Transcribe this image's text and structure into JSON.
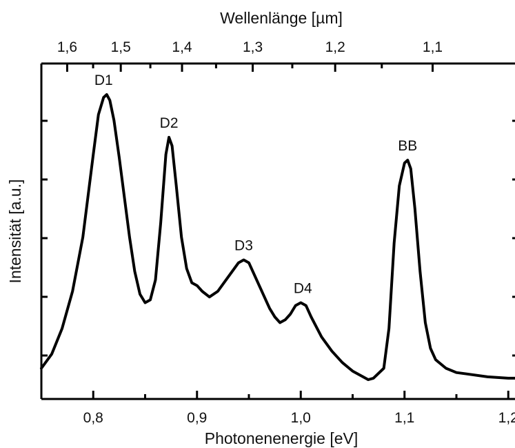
{
  "chart_data": {
    "type": "line",
    "title": "",
    "xlabel": "Photonenenergie [eV]",
    "ylabel": "Intensität [a.u.]",
    "x2label": "Wellenlänge [µm]",
    "xlim": [
      0.75,
      1.21
    ],
    "ylim": [
      0,
      1
    ],
    "x_ticks": [
      0.8,
      0.9,
      1.0,
      1.1,
      1.2
    ],
    "x_tick_labels": [
      "0,8",
      "0,9",
      "1,0",
      "1,1",
      "1,2"
    ],
    "x2_ticks": [
      1.6,
      1.5,
      1.4,
      1.3,
      1.2,
      1.1
    ],
    "x2_tick_labels": [
      "1,6",
      "1,5",
      "1,4",
      "1,3",
      "1,2",
      "1,1"
    ],
    "y_tick_labels_shown": false,
    "grid": false,
    "series": [
      {
        "x": [
          0.75,
          0.76,
          0.77,
          0.78,
          0.79,
          0.8,
          0.805,
          0.81,
          0.813,
          0.816,
          0.82,
          0.825,
          0.83,
          0.835,
          0.84,
          0.845,
          0.85,
          0.855,
          0.86,
          0.865,
          0.87,
          0.873,
          0.876,
          0.88,
          0.885,
          0.89,
          0.895,
          0.9,
          0.905,
          0.912,
          0.92,
          0.93,
          0.94,
          0.945,
          0.95,
          0.955,
          0.96,
          0.97,
          0.975,
          0.98,
          0.985,
          0.99,
          0.995,
          1.0,
          1.005,
          1.01,
          1.02,
          1.03,
          1.04,
          1.05,
          1.06,
          1.065,
          1.07,
          1.08,
          1.085,
          1.09,
          1.095,
          1.1,
          1.103,
          1.106,
          1.11,
          1.115,
          1.12,
          1.125,
          1.13,
          1.14,
          1.15,
          1.16,
          1.18,
          1.2,
          1.21
        ],
        "y": [
          0.04,
          0.09,
          0.18,
          0.31,
          0.5,
          0.79,
          0.93,
          0.99,
          1.0,
          0.98,
          0.91,
          0.78,
          0.64,
          0.5,
          0.38,
          0.3,
          0.27,
          0.28,
          0.35,
          0.55,
          0.79,
          0.85,
          0.82,
          0.68,
          0.5,
          0.39,
          0.34,
          0.33,
          0.31,
          0.29,
          0.31,
          0.36,
          0.41,
          0.42,
          0.41,
          0.37,
          0.33,
          0.25,
          0.22,
          0.2,
          0.21,
          0.23,
          0.26,
          0.27,
          0.26,
          0.22,
          0.15,
          0.1,
          0.06,
          0.03,
          0.01,
          0.0,
          0.005,
          0.04,
          0.18,
          0.48,
          0.68,
          0.76,
          0.77,
          0.74,
          0.6,
          0.38,
          0.2,
          0.11,
          0.07,
          0.04,
          0.025,
          0.02,
          0.01,
          0.005,
          0.005
        ]
      }
    ],
    "annotations": [
      {
        "text": "D1",
        "x": 0.81,
        "y": 1.0
      },
      {
        "text": "D2",
        "x": 0.873,
        "y": 0.85
      },
      {
        "text": "D3",
        "x": 0.945,
        "y": 0.42
      },
      {
        "text": "D4",
        "x": 1.002,
        "y": 0.27
      },
      {
        "text": "BB",
        "x": 1.103,
        "y": 0.77
      }
    ]
  }
}
